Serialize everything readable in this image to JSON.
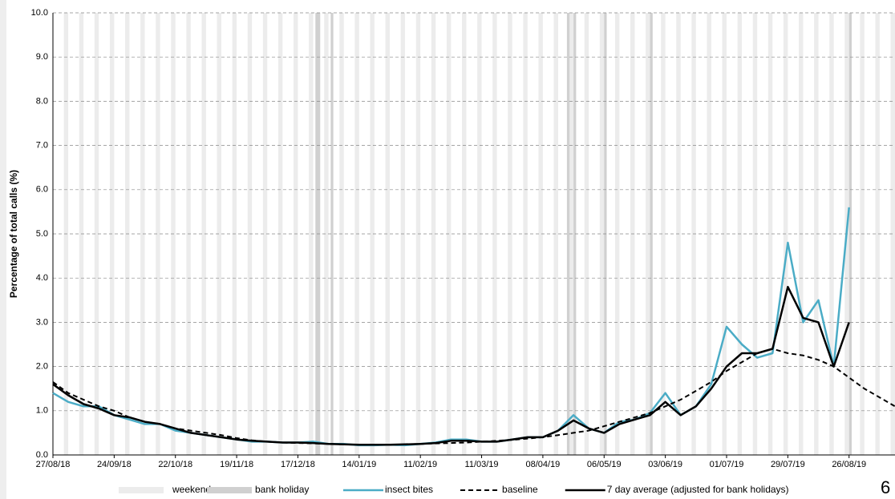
{
  "chart_data": {
    "type": "line",
    "y_label": "Percentage of total calls (%)",
    "page_number": "6",
    "x": [
      "27/08/18",
      "03/09/18",
      "10/09/18",
      "17/09/18",
      "24/09/18",
      "01/10/18",
      "08/10/18",
      "15/10/18",
      "22/10/18",
      "29/10/18",
      "05/11/18",
      "12/11/18",
      "19/11/18",
      "26/11/18",
      "03/12/18",
      "10/12/18",
      "17/12/18",
      "24/12/18",
      "31/12/18",
      "07/01/19",
      "14/01/19",
      "21/01/19",
      "28/01/19",
      "04/02/19",
      "11/02/19",
      "18/02/19",
      "25/02/19",
      "04/03/19",
      "11/03/19",
      "18/03/19",
      "25/03/19",
      "01/04/19",
      "08/04/19",
      "15/04/19",
      "22/04/19",
      "29/04/19",
      "06/05/19",
      "13/05/19",
      "20/05/19",
      "27/05/19",
      "03/06/19",
      "10/06/19",
      "17/06/19",
      "24/06/19",
      "01/07/19",
      "08/07/19",
      "15/07/19",
      "22/07/19",
      "29/07/19",
      "05/08/19",
      "12/08/19",
      "19/08/19",
      "26/08/19",
      "02/09/19",
      "09/09/19",
      "16/09/19"
    ],
    "series": [
      {
        "name": "insect bites",
        "color": "#4bacc6",
        "dash": false,
        "width": 2.5,
        "values": [
          1.4,
          1.2,
          1.1,
          1.1,
          0.9,
          0.8,
          0.7,
          0.7,
          0.55,
          0.5,
          0.45,
          0.4,
          0.35,
          0.3,
          0.3,
          0.28,
          0.28,
          0.3,
          0.25,
          0.25,
          0.22,
          0.22,
          0.23,
          0.22,
          0.25,
          0.28,
          0.35,
          0.35,
          0.3,
          0.3,
          0.35,
          0.4,
          0.4,
          0.55,
          0.9,
          0.6,
          0.5,
          0.75,
          0.8,
          0.95,
          1.4,
          0.9,
          1.1,
          1.6,
          2.9,
          2.5,
          2.2,
          2.3,
          4.8,
          3.0,
          3.5,
          2.0,
          5.6,
          null,
          null,
          null
        ]
      },
      {
        "name": "baseline",
        "color": "#000000",
        "dash": true,
        "width": 2,
        "values": [
          1.65,
          1.4,
          1.25,
          1.1,
          1.0,
          0.85,
          0.75,
          0.7,
          0.6,
          0.55,
          0.5,
          0.45,
          0.38,
          0.33,
          0.3,
          0.28,
          0.27,
          0.26,
          0.25,
          0.24,
          0.23,
          0.23,
          0.23,
          0.24,
          0.25,
          0.26,
          0.27,
          0.28,
          0.3,
          0.32,
          0.34,
          0.37,
          0.4,
          0.45,
          0.5,
          0.55,
          0.65,
          0.75,
          0.85,
          0.95,
          1.1,
          1.25,
          1.45,
          1.65,
          1.9,
          2.1,
          2.3,
          2.4,
          2.3,
          2.25,
          2.15,
          2.0,
          1.75,
          1.5,
          1.3,
          1.1
        ]
      },
      {
        "name": "7 day average (adjusted for bank holidays)",
        "color": "#000000",
        "dash": false,
        "width": 2.5,
        "values": [
          1.6,
          1.35,
          1.15,
          1.05,
          0.9,
          0.85,
          0.75,
          0.7,
          0.6,
          0.5,
          0.45,
          0.4,
          0.35,
          0.32,
          0.3,
          0.28,
          0.28,
          0.27,
          0.25,
          0.24,
          0.23,
          0.23,
          0.23,
          0.24,
          0.25,
          0.27,
          0.32,
          0.32,
          0.3,
          0.3,
          0.35,
          0.4,
          0.4,
          0.55,
          0.78,
          0.6,
          0.5,
          0.7,
          0.8,
          0.9,
          1.2,
          0.9,
          1.1,
          1.5,
          2.0,
          2.3,
          2.3,
          2.4,
          3.8,
          3.1,
          3.0,
          2.0,
          3.0,
          null,
          null,
          null
        ]
      }
    ],
    "weekend_label": "weekend",
    "weekend_color": "#ececec",
    "bank_holiday_label": "bank holiday",
    "bank_holiday_color": "#d0d0d0",
    "bank_holidays": [
      "25/12/18",
      "26/12/18",
      "01/01/19",
      "19/04/19",
      "22/04/19",
      "06/05/19",
      "27/05/19",
      "26/08/19"
    ],
    "xlim": [
      "27/08/18",
      "16/09/19"
    ],
    "xticks": [
      "27/08/18",
      "24/09/18",
      "22/10/18",
      "19/11/18",
      "17/12/18",
      "14/01/19",
      "11/02/19",
      "11/03/19",
      "08/04/19",
      "06/05/19",
      "03/06/19",
      "01/07/19",
      "29/07/19",
      "26/08/19"
    ],
    "ylim": [
      0,
      10
    ],
    "yticks": [
      {
        "value": 0,
        "label": "0.0"
      },
      {
        "value": 1,
        "label": "1.0"
      },
      {
        "value": 2,
        "label": "2.0"
      },
      {
        "value": 3,
        "label": "3.0"
      },
      {
        "value": 4,
        "label": "4.0"
      },
      {
        "value": 5,
        "label": "5.0"
      },
      {
        "value": 6,
        "label": "6.0"
      },
      {
        "value": 7,
        "label": "7.0"
      },
      {
        "value": 8,
        "label": "8.0"
      },
      {
        "value": 9,
        "label": "9.0"
      },
      {
        "value": 10,
        "label": "10.0"
      }
    ],
    "grid": true
  }
}
